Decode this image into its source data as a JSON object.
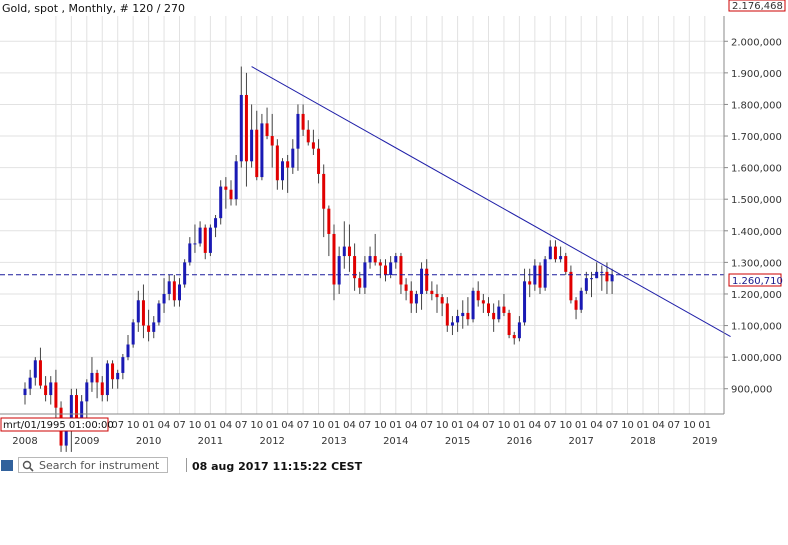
{
  "chart_data": {
    "type": "candlestick",
    "title": "Gold, spot , Monthly, # 120 / 270",
    "top_right_value": "2.176,468",
    "cursor_date": "mrt/01/1995 01:00:00",
    "current_price": 1260.71,
    "current_price_label": "1.260,710",
    "ylim": [
      820000,
      2080000
    ],
    "yticks": [
      {
        "value": 900000,
        "label": "900,000"
      },
      {
        "value": 1000000,
        "label": "1.000,000"
      },
      {
        "value": 1100000,
        "label": "1.100,000"
      },
      {
        "value": 1200000,
        "label": "1.200,000"
      },
      {
        "value": 1300000,
        "label": "1.300,000"
      },
      {
        "value": 1400000,
        "label": "1.400,000"
      },
      {
        "value": 1500000,
        "label": "1.500,000"
      },
      {
        "value": 1600000,
        "label": "1.600,000"
      },
      {
        "value": 1700000,
        "label": "1.700,000"
      },
      {
        "value": 1800000,
        "label": "1.800,000"
      },
      {
        "value": 1900000,
        "label": "1.900,000"
      },
      {
        "value": 2000000,
        "label": "2.000,000"
      }
    ],
    "x_month_ticks": [
      {
        "i": 6,
        "label": "07"
      },
      {
        "i": 9,
        "label": "10"
      },
      {
        "i": 12,
        "label": "01"
      },
      {
        "i": 15,
        "label": "04"
      },
      {
        "i": 18,
        "label": "07"
      },
      {
        "i": 21,
        "label": "10"
      },
      {
        "i": 24,
        "label": "01"
      },
      {
        "i": 27,
        "label": "04"
      },
      {
        "i": 30,
        "label": "07"
      },
      {
        "i": 33,
        "label": "10"
      },
      {
        "i": 36,
        "label": "01"
      },
      {
        "i": 39,
        "label": "04"
      },
      {
        "i": 42,
        "label": "07"
      },
      {
        "i": 45,
        "label": "10"
      },
      {
        "i": 48,
        "label": "01"
      },
      {
        "i": 51,
        "label": "04"
      },
      {
        "i": 54,
        "label": "07"
      },
      {
        "i": 57,
        "label": "10"
      },
      {
        "i": 60,
        "label": "01"
      },
      {
        "i": 63,
        "label": "04"
      },
      {
        "i": 66,
        "label": "07"
      },
      {
        "i": 69,
        "label": "10"
      },
      {
        "i": 72,
        "label": "01"
      },
      {
        "i": 75,
        "label": "04"
      },
      {
        "i": 78,
        "label": "07"
      },
      {
        "i": 81,
        "label": "10"
      },
      {
        "i": 84,
        "label": "01"
      },
      {
        "i": 87,
        "label": "04"
      },
      {
        "i": 90,
        "label": "07"
      },
      {
        "i": 93,
        "label": "10"
      },
      {
        "i": 96,
        "label": "01"
      },
      {
        "i": 99,
        "label": "04"
      },
      {
        "i": 102,
        "label": "07"
      },
      {
        "i": 105,
        "label": "10"
      },
      {
        "i": 108,
        "label": "01"
      },
      {
        "i": 111,
        "label": "04"
      },
      {
        "i": 114,
        "label": "07"
      },
      {
        "i": 117,
        "label": "10"
      },
      {
        "i": 120,
        "label": "01"
      },
      {
        "i": 123,
        "label": "04"
      },
      {
        "i": 126,
        "label": "07"
      },
      {
        "i": 129,
        "label": "10"
      },
      {
        "i": 132,
        "label": "01"
      }
    ],
    "x_year_ticks": [
      {
        "i": 0,
        "label": "2008"
      },
      {
        "i": 12,
        "label": "2009"
      },
      {
        "i": 24,
        "label": "2010"
      },
      {
        "i": 36,
        "label": "2011"
      },
      {
        "i": 48,
        "label": "2012"
      },
      {
        "i": 60,
        "label": "2013"
      },
      {
        "i": 72,
        "label": "2014"
      },
      {
        "i": 84,
        "label": "2015"
      },
      {
        "i": 96,
        "label": "2016"
      },
      {
        "i": 108,
        "label": "2017"
      },
      {
        "i": 120,
        "label": "2018"
      },
      {
        "i": 132,
        "label": "2019"
      }
    ],
    "trendline": {
      "start": {
        "i": 44,
        "value": 1920000
      },
      "end": {
        "i": 137,
        "value": 1065000
      }
    },
    "series_ohlc": [
      [
        880,
        920,
        850,
        900
      ],
      [
        900,
        960,
        880,
        935
      ],
      [
        935,
        1000,
        910,
        990
      ],
      [
        990,
        1030,
        900,
        910
      ],
      [
        910,
        940,
        860,
        880
      ],
      [
        880,
        940,
        850,
        920
      ],
      [
        920,
        960,
        800,
        840
      ],
      [
        840,
        860,
        700,
        720
      ],
      [
        720,
        800,
        700,
        780
      ],
      [
        780,
        900,
        700,
        880
      ],
      [
        880,
        900,
        780,
        800
      ],
      [
        800,
        880,
        800,
        860
      ],
      [
        860,
        930,
        800,
        920
      ],
      [
        920,
        1000,
        890,
        950
      ],
      [
        950,
        960,
        870,
        920
      ],
      [
        920,
        940,
        860,
        880
      ],
      [
        880,
        990,
        860,
        980
      ],
      [
        980,
        990,
        900,
        930
      ],
      [
        930,
        960,
        900,
        950
      ],
      [
        950,
        1010,
        930,
        1000
      ],
      [
        1000,
        1070,
        990,
        1040
      ],
      [
        1040,
        1120,
        1030,
        1110
      ],
      [
        1110,
        1210,
        1080,
        1180
      ],
      [
        1180,
        1230,
        1060,
        1100
      ],
      [
        1100,
        1150,
        1050,
        1080
      ],
      [
        1080,
        1130,
        1060,
        1110
      ],
      [
        1110,
        1180,
        1100,
        1170
      ],
      [
        1170,
        1250,
        1140,
        1200
      ],
      [
        1200,
        1260,
        1180,
        1240
      ],
      [
        1240,
        1260,
        1160,
        1180
      ],
      [
        1180,
        1250,
        1160,
        1230
      ],
      [
        1230,
        1310,
        1220,
        1300
      ],
      [
        1300,
        1380,
        1290,
        1360
      ],
      [
        1360,
        1420,
        1330,
        1360
      ],
      [
        1360,
        1430,
        1350,
        1410
      ],
      [
        1410,
        1420,
        1310,
        1330
      ],
      [
        1330,
        1420,
        1320,
        1410
      ],
      [
        1410,
        1450,
        1380,
        1440
      ],
      [
        1440,
        1560,
        1420,
        1540
      ],
      [
        1540,
        1570,
        1470,
        1530
      ],
      [
        1530,
        1560,
        1480,
        1500
      ],
      [
        1500,
        1640,
        1480,
        1620
      ],
      [
        1620,
        1920,
        1600,
        1830
      ],
      [
        1830,
        1900,
        1540,
        1620
      ],
      [
        1620,
        1800,
        1600,
        1720
      ],
      [
        1720,
        1780,
        1560,
        1570
      ],
      [
        1570,
        1770,
        1560,
        1740
      ],
      [
        1740,
        1790,
        1690,
        1700
      ],
      [
        1700,
        1770,
        1600,
        1670
      ],
      [
        1670,
        1690,
        1530,
        1560
      ],
      [
        1560,
        1630,
        1530,
        1620
      ],
      [
        1620,
        1640,
        1520,
        1600
      ],
      [
        1600,
        1690,
        1580,
        1660
      ],
      [
        1660,
        1800,
        1590,
        1770
      ],
      [
        1770,
        1800,
        1700,
        1720
      ],
      [
        1720,
        1750,
        1670,
        1680
      ],
      [
        1680,
        1720,
        1640,
        1660
      ],
      [
        1660,
        1690,
        1550,
        1580
      ],
      [
        1580,
        1610,
        1380,
        1470
      ],
      [
        1470,
        1480,
        1320,
        1390
      ],
      [
        1390,
        1420,
        1180,
        1230
      ],
      [
        1230,
        1350,
        1200,
        1320
      ],
      [
        1320,
        1430,
        1280,
        1350
      ],
      [
        1350,
        1420,
        1270,
        1320
      ],
      [
        1320,
        1360,
        1210,
        1250
      ],
      [
        1250,
        1270,
        1200,
        1220
      ],
      [
        1220,
        1320,
        1200,
        1300
      ],
      [
        1300,
        1350,
        1280,
        1320
      ],
      [
        1320,
        1390,
        1290,
        1300
      ],
      [
        1300,
        1310,
        1250,
        1290
      ],
      [
        1290,
        1310,
        1240,
        1260
      ],
      [
        1260,
        1320,
        1250,
        1300
      ],
      [
        1300,
        1330,
        1280,
        1320
      ],
      [
        1320,
        1330,
        1200,
        1230
      ],
      [
        1230,
        1250,
        1180,
        1210
      ],
      [
        1210,
        1240,
        1140,
        1170
      ],
      [
        1170,
        1210,
        1140,
        1200
      ],
      [
        1200,
        1300,
        1150,
        1280
      ],
      [
        1280,
        1310,
        1200,
        1210
      ],
      [
        1210,
        1240,
        1180,
        1200
      ],
      [
        1200,
        1230,
        1140,
        1190
      ],
      [
        1190,
        1200,
        1130,
        1170
      ],
      [
        1170,
        1190,
        1080,
        1100
      ],
      [
        1100,
        1130,
        1070,
        1110
      ],
      [
        1110,
        1150,
        1080,
        1130
      ],
      [
        1130,
        1180,
        1090,
        1140
      ],
      [
        1140,
        1190,
        1100,
        1120
      ],
      [
        1120,
        1220,
        1110,
        1210
      ],
      [
        1210,
        1240,
        1160,
        1180
      ],
      [
        1180,
        1200,
        1140,
        1170
      ],
      [
        1170,
        1190,
        1130,
        1140
      ],
      [
        1140,
        1170,
        1080,
        1120
      ],
      [
        1120,
        1180,
        1110,
        1160
      ],
      [
        1160,
        1200,
        1130,
        1140
      ],
      [
        1140,
        1150,
        1060,
        1070
      ],
      [
        1070,
        1080,
        1040,
        1060
      ],
      [
        1060,
        1130,
        1050,
        1110
      ],
      [
        1110,
        1280,
        1100,
        1240
      ],
      [
        1240,
        1280,
        1190,
        1230
      ],
      [
        1230,
        1310,
        1210,
        1290
      ],
      [
        1290,
        1300,
        1200,
        1220
      ],
      [
        1220,
        1320,
        1210,
        1310
      ],
      [
        1310,
        1370,
        1310,
        1350
      ],
      [
        1350,
        1370,
        1300,
        1310
      ],
      [
        1310,
        1350,
        1300,
        1320
      ],
      [
        1320,
        1330,
        1260,
        1270
      ],
      [
        1270,
        1290,
        1170,
        1180
      ],
      [
        1180,
        1190,
        1120,
        1150
      ],
      [
        1150,
        1220,
        1140,
        1210
      ],
      [
        1210,
        1270,
        1200,
        1250
      ],
      [
        1250,
        1270,
        1190,
        1250
      ],
      [
        1250,
        1300,
        1250,
        1270
      ],
      [
        1270,
        1290,
        1210,
        1270
      ],
      [
        1270,
        1300,
        1200,
        1240
      ],
      [
        1240,
        1280,
        1200,
        1260
      ]
    ]
  },
  "colors": {
    "up": "#1a1ab4",
    "down": "#e00000",
    "trendline": "#1f1fa8",
    "price_line": "#1a1a9c",
    "grid": "#e2e2e2",
    "axis": "#8a8a8a"
  },
  "bottom_bar": {
    "search_placeholder": "Search for instrument",
    "timestamp": "08 aug 2017 11:15:22 CEST"
  }
}
